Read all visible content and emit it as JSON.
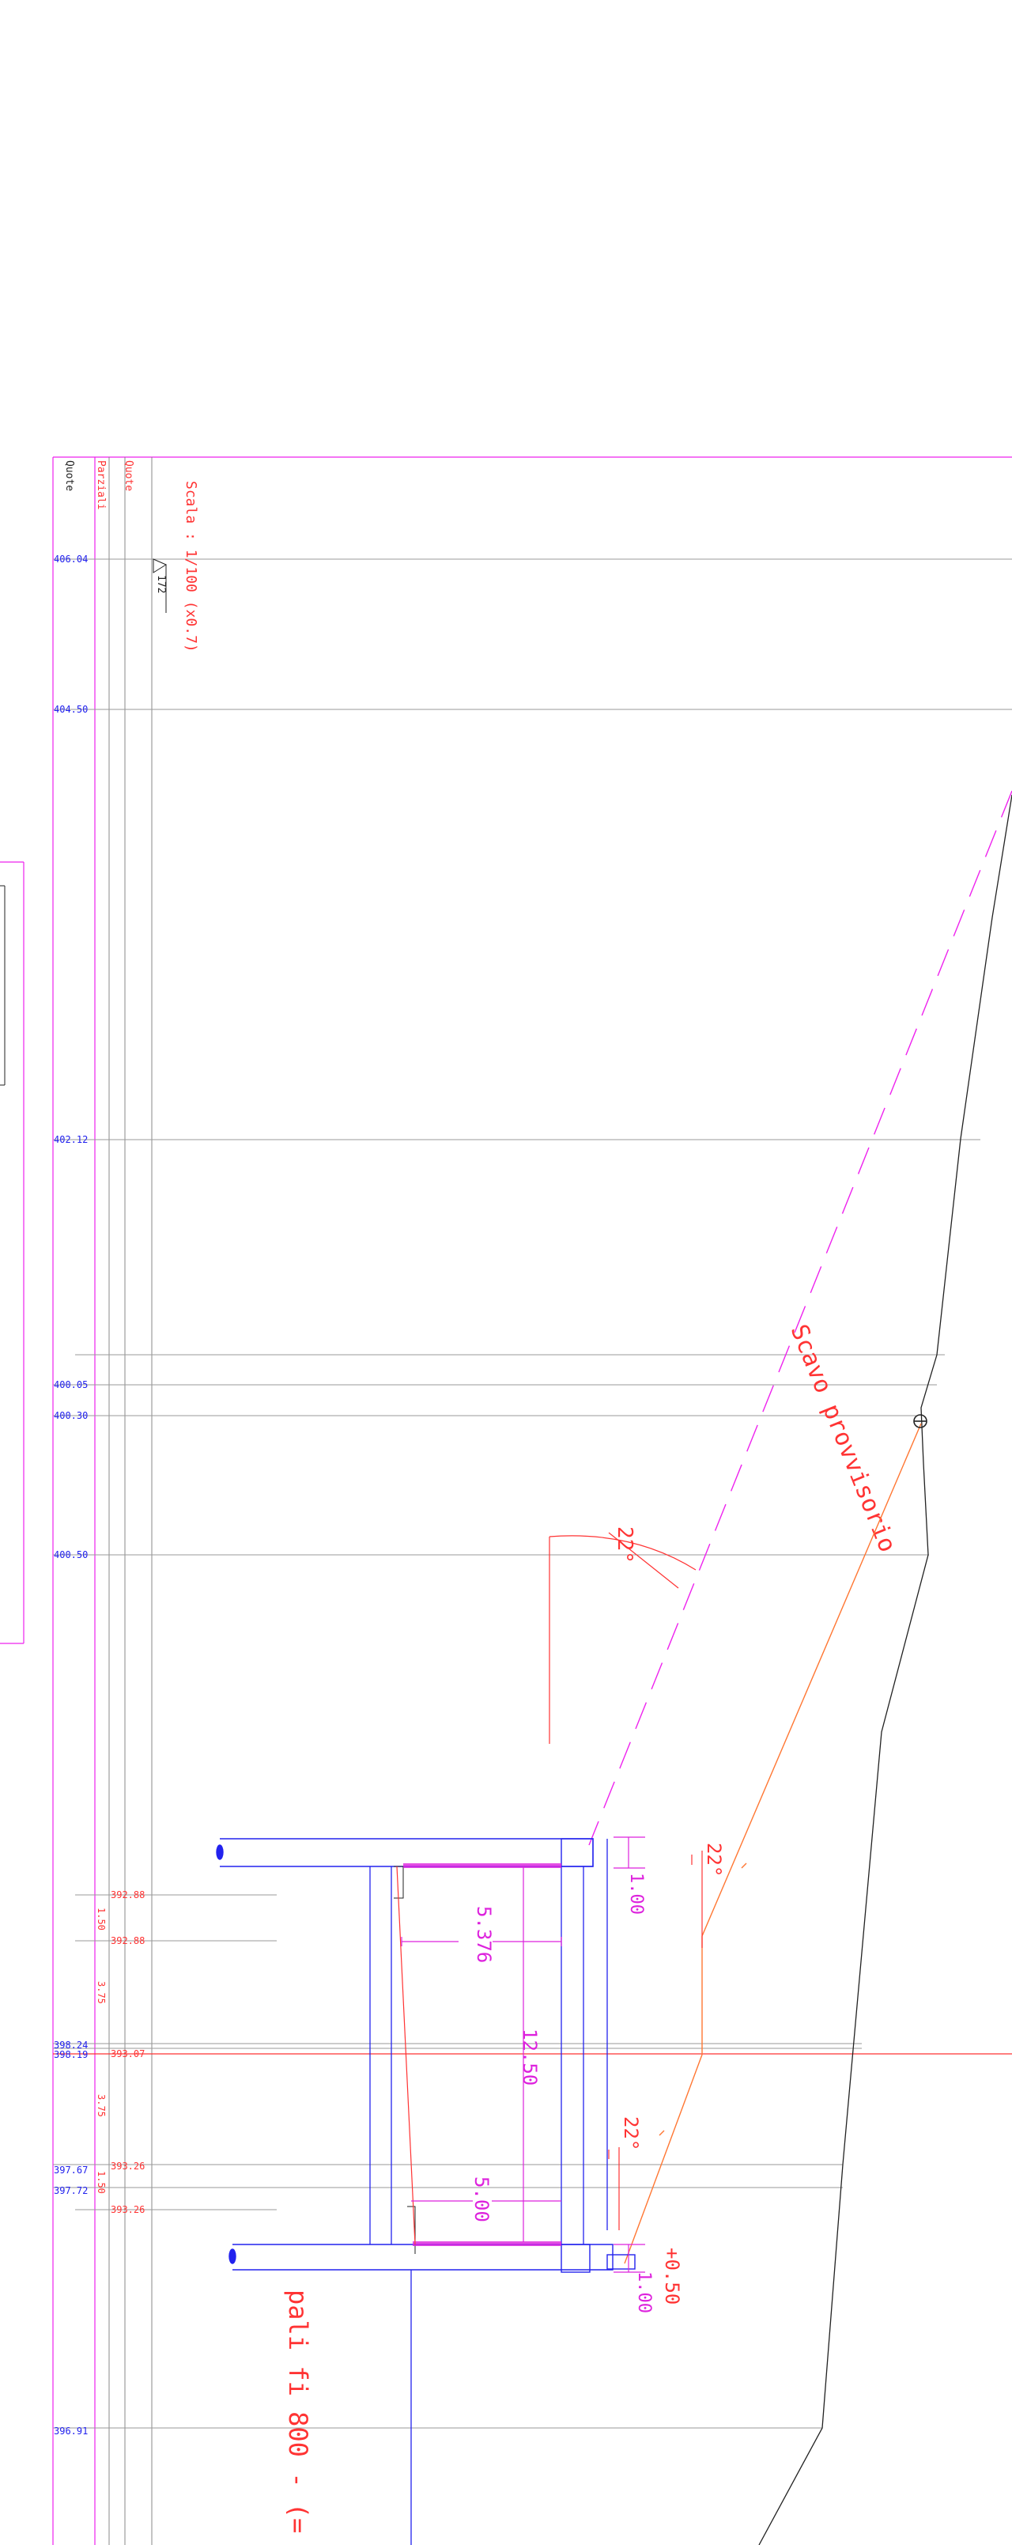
{
  "header": {
    "col_quote_red": "Quote",
    "col_parziali": "Parziali",
    "col_quote_black": "Quote"
  },
  "scale_label": "Scala : 1/100 (x0.7)",
  "marker_label": "172",
  "elevations": [
    "406.04",
    "404.50",
    "402.12",
    "400.05",
    "400.30",
    "400.50",
    "398.24",
    "398.19",
    "397.67",
    "397.72",
    "396.91"
  ],
  "red_elevations": [
    "392.88",
    "392.88",
    "393.07",
    "393.26",
    "393.26"
  ],
  "partials": [
    "1.50",
    "3.75",
    "3.75",
    "1.50"
  ],
  "annotations": {
    "excavation": "Scavo provvisorio",
    "angle_top": "22°",
    "angle_mid": "22°",
    "angle_low": "22°",
    "dim_5376": "5.376",
    "dim_1250": "12.50",
    "dim_500": "5.00",
    "dim_100_top": "1.00",
    "dim_100_bot": "1.00",
    "dim_050": "+0.50",
    "piles": "pali fi 800 - (="
  },
  "colors": {
    "frame": "#ee22ee",
    "structure": "#2222ee",
    "grid": "#999999",
    "terrain": "#222222",
    "text_red": "#ff3333",
    "slope_orange": "#ff7733"
  }
}
